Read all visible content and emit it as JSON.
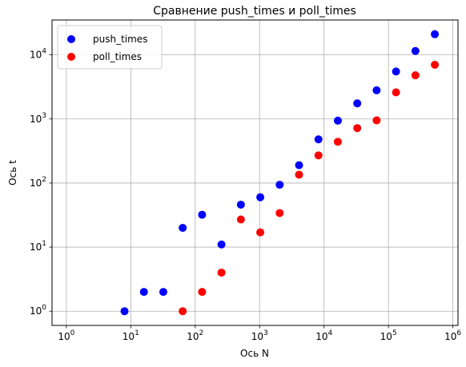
{
  "chart_data": {
    "type": "scatter",
    "title": "Сравнение push_times и poll_times",
    "xlabel": "Ось N",
    "ylabel": "Ось t",
    "xscale": "log",
    "yscale": "log",
    "xlim": [
      0.6,
      1200000
    ],
    "ylim": [
      0.6,
      35000
    ],
    "grid": true,
    "legend_position": "upper-left",
    "x_ticks": [
      {
        "value": 1,
        "base": "10",
        "exp": "0"
      },
      {
        "value": 10,
        "base": "10",
        "exp": "1"
      },
      {
        "value": 100,
        "base": "10",
        "exp": "2"
      },
      {
        "value": 1000,
        "base": "10",
        "exp": "3"
      },
      {
        "value": 10000,
        "base": "10",
        "exp": "4"
      },
      {
        "value": 100000,
        "base": "10",
        "exp": "5"
      },
      {
        "value": 1000000,
        "base": "10",
        "exp": "6"
      }
    ],
    "y_ticks": [
      {
        "value": 1,
        "base": "10",
        "exp": "0"
      },
      {
        "value": 10,
        "base": "10",
        "exp": "1"
      },
      {
        "value": 100,
        "base": "10",
        "exp": "2"
      },
      {
        "value": 1000,
        "base": "10",
        "exp": "3"
      },
      {
        "value": 10000,
        "base": "10",
        "exp": "4"
      }
    ],
    "series": [
      {
        "name": "push_times",
        "color": "#0000ff",
        "points": [
          [
            8,
            1
          ],
          [
            16,
            2
          ],
          [
            32,
            2
          ],
          [
            64,
            20
          ],
          [
            128,
            32
          ],
          [
            256,
            11
          ],
          [
            512,
            46
          ],
          [
            1024,
            60
          ],
          [
            2048,
            94
          ],
          [
            4096,
            190
          ],
          [
            8192,
            480
          ],
          [
            16384,
            940
          ],
          [
            32768,
            1750
          ],
          [
            65536,
            2800
          ],
          [
            131072,
            5500
          ],
          [
            262144,
            11500
          ],
          [
            524288,
            21000
          ]
        ]
      },
      {
        "name": "poll_times",
        "color": "#ff0000",
        "points": [
          [
            64,
            1
          ],
          [
            128,
            2
          ],
          [
            256,
            4
          ],
          [
            512,
            27
          ],
          [
            1024,
            17
          ],
          [
            2048,
            34
          ],
          [
            4096,
            135
          ],
          [
            8192,
            270
          ],
          [
            16384,
            440
          ],
          [
            32768,
            720
          ],
          [
            65536,
            950
          ],
          [
            131072,
            2600
          ],
          [
            262144,
            4800
          ],
          [
            524288,
            7000
          ]
        ]
      }
    ]
  }
}
